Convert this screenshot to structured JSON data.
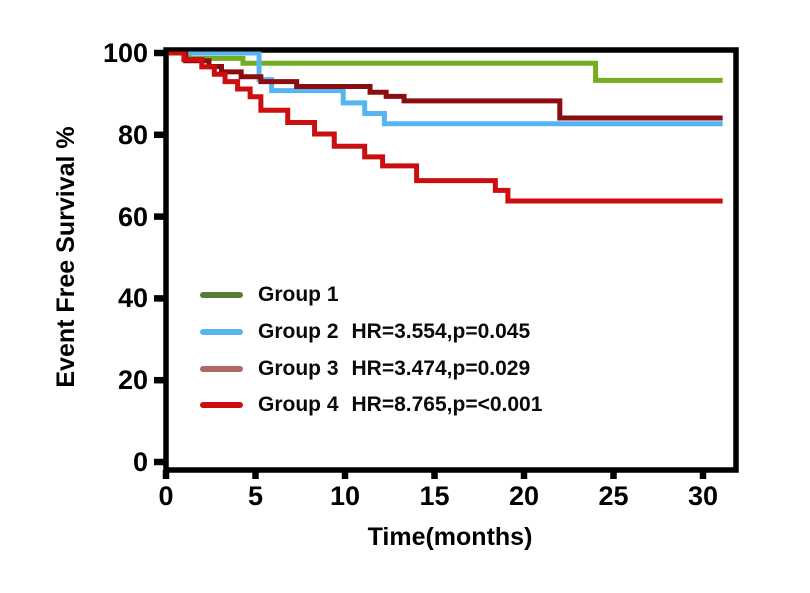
{
  "figure": {
    "background": "#ffffff",
    "axis_color": "#000000",
    "text_color": "#000000"
  },
  "chart_data": {
    "type": "line",
    "subtype": "kaplan_meier_step",
    "title": "",
    "xlabel": "Time(months)",
    "ylabel": "Event Free Survival %",
    "xticks": [
      0,
      5,
      10,
      15,
      20,
      25,
      30
    ],
    "yticks": [
      0,
      20,
      40,
      60,
      80,
      100
    ],
    "xlim": [
      0,
      31.5
    ],
    "ylim": [
      0,
      100
    ],
    "x_end_months": 31.1,
    "grid": false,
    "legend_position": "inside-lower-left",
    "series": [
      {
        "label": "Group 1",
        "annotation": "",
        "color": "#74ae1e",
        "legend_color": "#567c3a",
        "steps": [
          [
            0,
            100
          ],
          [
            1.3,
            98.7
          ],
          [
            4.3,
            97.5
          ],
          [
            24,
            93.3
          ]
        ]
      },
      {
        "label": "Group 2",
        "annotation": "HR=3.554,p=0.045",
        "color": "#55b5f0",
        "legend_color": "#55b5f0",
        "steps": [
          [
            0,
            100
          ],
          [
            5.2,
            93.5
          ],
          [
            5.9,
            90.8
          ],
          [
            9.9,
            87.8
          ],
          [
            11.1,
            85.2
          ],
          [
            12.2,
            82.7
          ]
        ]
      },
      {
        "label": "Group 3",
        "annotation": "HR=3.474,p=0.029",
        "color": "#8a0e10",
        "legend_color": "#ae6a66",
        "steps": [
          [
            0,
            100
          ],
          [
            1.1,
            98.1
          ],
          [
            2.4,
            96.7
          ],
          [
            3.1,
            95.4
          ],
          [
            4.2,
            94.2
          ],
          [
            5.3,
            93.0
          ],
          [
            7.3,
            91.8
          ],
          [
            11.4,
            90.4
          ],
          [
            12.3,
            89.4
          ],
          [
            13.3,
            88.3
          ],
          [
            22,
            84.1
          ]
        ]
      },
      {
        "label": "Group 4",
        "annotation": "HR=8.765,p=<0.001",
        "color": "#cb0e10",
        "legend_color": "#cb0e10",
        "steps": [
          [
            0,
            100
          ],
          [
            1,
            98.4
          ],
          [
            2,
            96.6
          ],
          [
            2.7,
            94.8
          ],
          [
            3.3,
            93.0
          ],
          [
            4,
            91.2
          ],
          [
            4.7,
            89.3
          ],
          [
            5.3,
            86.0
          ],
          [
            6.8,
            83.0
          ],
          [
            8.3,
            80.2
          ],
          [
            9.4,
            77.2
          ],
          [
            11.1,
            74.6
          ],
          [
            12.1,
            72.4
          ],
          [
            14,
            68.8
          ],
          [
            18.4,
            66.4
          ],
          [
            19.1,
            63.8
          ]
        ]
      }
    ]
  }
}
